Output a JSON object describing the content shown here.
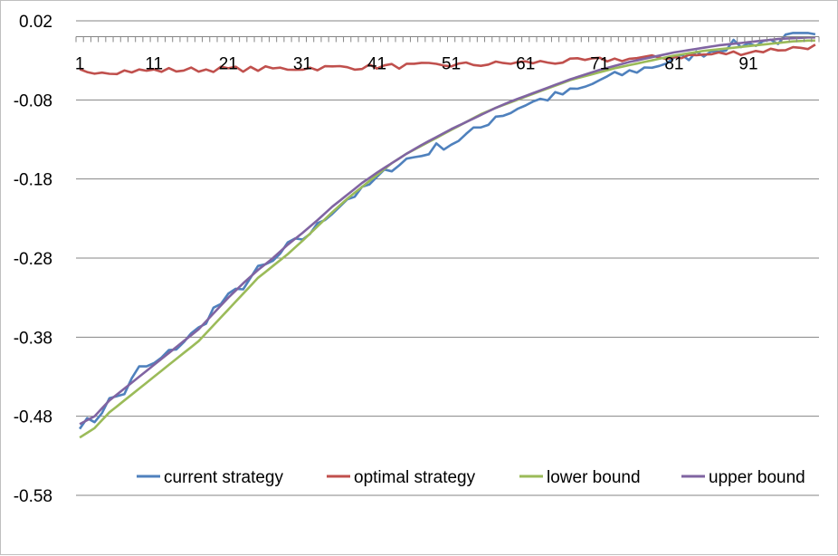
{
  "chart_data": {
    "type": "line",
    "title": "",
    "xlabel": "",
    "ylabel": "",
    "x_start": 1,
    "x_end": 100,
    "x_tick_labels": [
      "1",
      "11",
      "21",
      "31",
      "41",
      "51",
      "61",
      "71",
      "81",
      "91"
    ],
    "y_tick_labels": [
      "0.02",
      "-0.08",
      "-0.18",
      "-0.28",
      "-0.38",
      "-0.48",
      "-0.58"
    ],
    "ylim": [
      -0.58,
      0.02
    ],
    "x_axis_at_y": 0.0,
    "grid": "horizontal",
    "legend": "bottom-inside",
    "series": [
      {
        "name": "current strategy",
        "color": "#4f81bd",
        "anchors": [
          [
            1,
            -0.49
          ],
          [
            3,
            -0.485
          ],
          [
            5,
            -0.46
          ],
          [
            7,
            -0.45
          ],
          [
            9,
            -0.42
          ],
          [
            11,
            -0.415
          ],
          [
            13,
            -0.4
          ],
          [
            15,
            -0.385
          ],
          [
            17,
            -0.37
          ],
          [
            19,
            -0.345
          ],
          [
            21,
            -0.33
          ],
          [
            23,
            -0.315
          ],
          [
            25,
            -0.295
          ],
          [
            27,
            -0.285
          ],
          [
            29,
            -0.265
          ],
          [
            31,
            -0.255
          ],
          [
            33,
            -0.24
          ],
          [
            35,
            -0.22
          ],
          [
            37,
            -0.205
          ],
          [
            39,
            -0.195
          ],
          [
            41,
            -0.18
          ],
          [
            43,
            -0.165
          ],
          [
            45,
            -0.155
          ],
          [
            47,
            -0.15
          ],
          [
            49,
            -0.14
          ],
          [
            51,
            -0.135
          ],
          [
            53,
            -0.125
          ],
          [
            55,
            -0.115
          ],
          [
            57,
            -0.1
          ],
          [
            59,
            -0.095
          ],
          [
            61,
            -0.085
          ],
          [
            63,
            -0.08
          ],
          [
            65,
            -0.075
          ],
          [
            67,
            -0.07
          ],
          [
            69,
            -0.065
          ],
          [
            71,
            -0.055
          ],
          [
            73,
            -0.05
          ],
          [
            75,
            -0.045
          ],
          [
            77,
            -0.04
          ],
          [
            79,
            -0.035
          ],
          [
            81,
            -0.03
          ],
          [
            83,
            -0.025
          ],
          [
            85,
            -0.02
          ],
          [
            87,
            -0.015
          ],
          [
            89,
            -0.01
          ],
          [
            91,
            -0.01
          ],
          [
            93,
            -0.005
          ],
          [
            95,
            -0.005
          ],
          [
            97,
            0.0
          ],
          [
            99,
            0.0
          ],
          [
            100,
            -0.002
          ]
        ],
        "noise": 0.006
      },
      {
        "name": "optimal strategy",
        "color": "#c0504d",
        "anchors": [
          [
            1,
            -0.043
          ],
          [
            5,
            -0.044
          ],
          [
            10,
            -0.043
          ],
          [
            15,
            -0.042
          ],
          [
            20,
            -0.041
          ],
          [
            25,
            -0.041
          ],
          [
            30,
            -0.04
          ],
          [
            35,
            -0.039
          ],
          [
            40,
            -0.038
          ],
          [
            45,
            -0.037
          ],
          [
            50,
            -0.036
          ],
          [
            55,
            -0.035
          ],
          [
            60,
            -0.033
          ],
          [
            65,
            -0.032
          ],
          [
            70,
            -0.03
          ],
          [
            75,
            -0.028
          ],
          [
            80,
            -0.026
          ],
          [
            85,
            -0.023
          ],
          [
            90,
            -0.02
          ],
          [
            95,
            -0.016
          ],
          [
            100,
            -0.012
          ]
        ],
        "noise": 0.0035
      },
      {
        "name": "lower bound",
        "color": "#9bbb59",
        "anchors": [
          [
            1,
            -0.507
          ],
          [
            3,
            -0.495
          ],
          [
            5,
            -0.475
          ],
          [
            7,
            -0.46
          ],
          [
            9,
            -0.445
          ],
          [
            11,
            -0.43
          ],
          [
            13,
            -0.415
          ],
          [
            15,
            -0.4
          ],
          [
            17,
            -0.385
          ],
          [
            19,
            -0.365
          ],
          [
            21,
            -0.345
          ],
          [
            23,
            -0.325
          ],
          [
            25,
            -0.305
          ],
          [
            27,
            -0.29
          ],
          [
            29,
            -0.275
          ],
          [
            31,
            -0.258
          ],
          [
            33,
            -0.24
          ],
          [
            35,
            -0.222
          ],
          [
            37,
            -0.205
          ],
          [
            39,
            -0.19
          ],
          [
            41,
            -0.175
          ],
          [
            43,
            -0.16
          ],
          [
            45,
            -0.148
          ],
          [
            47,
            -0.138
          ],
          [
            49,
            -0.128
          ],
          [
            51,
            -0.118
          ],
          [
            53,
            -0.108
          ],
          [
            55,
            -0.098
          ],
          [
            57,
            -0.09
          ],
          [
            59,
            -0.083
          ],
          [
            61,
            -0.076
          ],
          [
            63,
            -0.069
          ],
          [
            65,
            -0.062
          ],
          [
            67,
            -0.055
          ],
          [
            69,
            -0.05
          ],
          [
            71,
            -0.045
          ],
          [
            73,
            -0.04
          ],
          [
            75,
            -0.036
          ],
          [
            77,
            -0.032
          ],
          [
            79,
            -0.028
          ],
          [
            81,
            -0.024
          ],
          [
            83,
            -0.021
          ],
          [
            85,
            -0.018
          ],
          [
            87,
            -0.016
          ],
          [
            89,
            -0.014
          ],
          [
            91,
            -0.012
          ],
          [
            93,
            -0.01
          ],
          [
            95,
            -0.008
          ],
          [
            97,
            -0.006
          ],
          [
            99,
            -0.005
          ],
          [
            100,
            -0.005
          ]
        ],
        "noise": 0.0
      },
      {
        "name": "upper bound",
        "color": "#8064a2",
        "anchors": [
          [
            1,
            -0.49
          ],
          [
            3,
            -0.48
          ],
          [
            5,
            -0.46
          ],
          [
            7,
            -0.445
          ],
          [
            9,
            -0.43
          ],
          [
            11,
            -0.415
          ],
          [
            13,
            -0.4
          ],
          [
            15,
            -0.385
          ],
          [
            17,
            -0.37
          ],
          [
            19,
            -0.35
          ],
          [
            21,
            -0.33
          ],
          [
            23,
            -0.312
          ],
          [
            25,
            -0.295
          ],
          [
            27,
            -0.28
          ],
          [
            29,
            -0.263
          ],
          [
            31,
            -0.248
          ],
          [
            33,
            -0.232
          ],
          [
            35,
            -0.215
          ],
          [
            37,
            -0.2
          ],
          [
            39,
            -0.185
          ],
          [
            41,
            -0.172
          ],
          [
            43,
            -0.16
          ],
          [
            45,
            -0.148
          ],
          [
            47,
            -0.137
          ],
          [
            49,
            -0.127
          ],
          [
            51,
            -0.117
          ],
          [
            53,
            -0.108
          ],
          [
            55,
            -0.099
          ],
          [
            57,
            -0.09
          ],
          [
            59,
            -0.082
          ],
          [
            61,
            -0.075
          ],
          [
            63,
            -0.068
          ],
          [
            65,
            -0.061
          ],
          [
            67,
            -0.054
          ],
          [
            69,
            -0.048
          ],
          [
            71,
            -0.042
          ],
          [
            73,
            -0.037
          ],
          [
            75,
            -0.032
          ],
          [
            77,
            -0.028
          ],
          [
            79,
            -0.024
          ],
          [
            81,
            -0.02
          ],
          [
            83,
            -0.017
          ],
          [
            85,
            -0.014
          ],
          [
            87,
            -0.011
          ],
          [
            89,
            -0.009
          ],
          [
            91,
            -0.007
          ],
          [
            93,
            -0.005
          ],
          [
            95,
            -0.003
          ],
          [
            97,
            -0.002
          ],
          [
            99,
            -0.001
          ],
          [
            100,
            -0.001
          ]
        ],
        "noise": 0.0
      }
    ]
  }
}
